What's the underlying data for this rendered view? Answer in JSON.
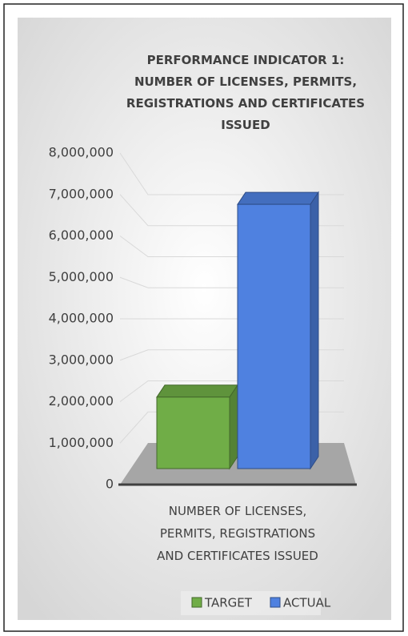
{
  "chart_data": {
    "type": "bar3d",
    "title": "PERFORMANCE INDICATOR 1: NUMBER OF LICENSES, PERMITS, REGISTRATIONS AND CERTIFICATES ISSUED",
    "categories": [
      "NUMBER OF LICENSES, PERMITS, REGISTRATIONS AND CERTIFICATES ISSUED"
    ],
    "series": [
      {
        "name": "TARGET",
        "color": "#70ad47",
        "values": [
          2400000
        ]
      },
      {
        "name": "ACTUAL",
        "color": "#4f81e0",
        "values": [
          7050000
        ]
      }
    ],
    "ylim": [
      0,
      8000000
    ],
    "yticks": [
      {
        "value": 0,
        "label": "0"
      },
      {
        "value": 1000000,
        "label": "1,000,000"
      },
      {
        "value": 2000000,
        "label": "2,000,000"
      },
      {
        "value": 3000000,
        "label": "3,000,000"
      },
      {
        "value": 4000000,
        "label": "4,000,000"
      },
      {
        "value": 5000000,
        "label": "5,000,000"
      },
      {
        "value": 6000000,
        "label": "6,000,000"
      },
      {
        "value": 7000000,
        "label": "7,000,000"
      },
      {
        "value": 8000000,
        "label": "8,000,000"
      }
    ],
    "grid": true,
    "legend": "bottom"
  }
}
